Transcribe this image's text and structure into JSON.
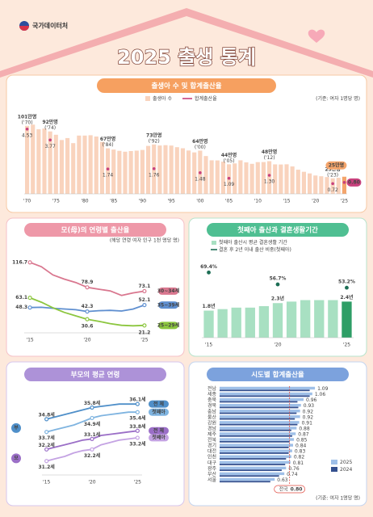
{
  "header": {
    "org": "국가데이터처",
    "title": "2025 출생 통계"
  },
  "chart_data": [
    {
      "type": "combo",
      "title": "출생아 수 및 합계출산율",
      "note": "(기준: 여자 1명당 명)",
      "categories": [
        "'70",
        null,
        null,
        null,
        null,
        "'75",
        null,
        null,
        null,
        null,
        "'80",
        null,
        null,
        null,
        null,
        "'85",
        null,
        null,
        null,
        null,
        "'90",
        null,
        null,
        null,
        null,
        "'95",
        null,
        null,
        null,
        null,
        "'00",
        null,
        null,
        null,
        null,
        "'05",
        null,
        null,
        null,
        null,
        "'10",
        null,
        null,
        null,
        null,
        "'15",
        null,
        null,
        null,
        null,
        "'20",
        null,
        null,
        null,
        null,
        "'25"
      ],
      "series": [
        {
          "name": "출생아 수",
          "color": "#f9d3bd",
          "highlight": "#f4a56c",
          "values": [
            100.7,
            102.5,
            95.6,
            96.7,
            92.4,
            87.5,
            79.7,
            82.6,
            75.1,
            86.3,
            86.3,
            86.8,
            84.9,
            77.0,
            67.4,
            65.6,
            63.7,
            62.4,
            63.4,
            64.0,
            65.0,
            71.0,
            73.1,
            71.6,
            72.1,
            71.5,
            69.1,
            67.5,
            64.2,
            61.4,
            64.0,
            56.0,
            49.7,
            49.5,
            47.7,
            43.8,
            45.1,
            49.7,
            46.6,
            44.5,
            47.0,
            47.1,
            48.4,
            43.7,
            43.5,
            43.8,
            40.6,
            35.8,
            32.7,
            30.3,
            27.2,
            26.1,
            24.9,
            23.0,
            23.8,
            25.4
          ],
          "value_labels": [
            "101만명",
            null,
            null,
            null,
            "92만명",
            null,
            null,
            null,
            null,
            null,
            null,
            null,
            null,
            null,
            "67만명",
            null,
            null,
            null,
            null,
            null,
            null,
            null,
            "73만명",
            null,
            null,
            null,
            null,
            null,
            null,
            null,
            "64만명",
            null,
            null,
            null,
            null,
            "44만명",
            null,
            null,
            null,
            null,
            null,
            null,
            "48만명",
            null,
            null,
            null,
            null,
            null,
            null,
            null,
            null,
            null,
            null,
            "23만명",
            null,
            "25만명"
          ],
          "value_notes": [
            "('70)",
            null,
            null,
            null,
            "('74)",
            null,
            null,
            null,
            null,
            null,
            null,
            null,
            null,
            null,
            "('84)",
            null,
            null,
            null,
            null,
            null,
            null,
            null,
            "('92)",
            null,
            null,
            null,
            null,
            null,
            null,
            null,
            "('00)",
            null,
            null,
            null,
            null,
            "('05)",
            null,
            null,
            null,
            null,
            null,
            null,
            "('12)",
            null,
            null,
            null,
            null,
            null,
            null,
            null,
            null,
            null,
            null,
            "('23)",
            null,
            null
          ]
        },
        {
          "name": "합계출산율",
          "color": "#c8417d",
          "axis": "y2",
          "values": [
            4.53,
            4.54,
            4.12,
            4.07,
            3.77,
            3.43,
            3.0,
            2.99,
            2.64,
            2.9,
            2.82,
            2.57,
            2.39,
            2.06,
            1.74,
            1.66,
            1.58,
            1.53,
            1.55,
            1.56,
            1.57,
            1.71,
            1.76,
            1.65,
            1.66,
            1.63,
            1.57,
            1.54,
            1.46,
            1.43,
            1.48,
            1.31,
            1.18,
            1.19,
            1.16,
            1.09,
            1.13,
            1.26,
            1.19,
            1.15,
            1.23,
            1.24,
            1.3,
            1.19,
            1.21,
            1.24,
            1.17,
            1.05,
            0.98,
            0.92,
            0.84,
            0.81,
            0.78,
            0.72,
            0.75,
            0.8
          ],
          "value_labels": [
            "4.53",
            null,
            null,
            null,
            "3.77",
            null,
            null,
            null,
            null,
            null,
            null,
            null,
            null,
            null,
            "1.74",
            null,
            null,
            null,
            null,
            null,
            null,
            null,
            "1.76",
            null,
            null,
            null,
            null,
            null,
            null,
            null,
            "1.48",
            null,
            null,
            null,
            null,
            "1.09",
            null,
            null,
            null,
            null,
            null,
            null,
            "1.30",
            null,
            null,
            null,
            null,
            null,
            null,
            null,
            null,
            null,
            null,
            "0.72",
            null,
            "0.80"
          ]
        }
      ],
      "ylim": [
        0,
        110
      ],
      "y2lim": [
        0,
        5.2
      ]
    },
    {
      "type": "line",
      "title": "모(母)의 연령별 출산율",
      "note": "(해당 연령 여자 인구 1천 명당 명)",
      "categories": [
        "'15",
        null,
        null,
        null,
        null,
        "'20",
        null,
        null,
        null,
        null,
        "'25"
      ],
      "series": [
        {
          "name": "30~34세",
          "color": "#d9778f",
          "values": [
            116.7,
            110.1,
            97.7,
            91.4,
            86.2,
            78.9,
            76.1,
            73.5,
            66.7,
            70.4,
            73.1
          ]
        },
        {
          "name": "35~39세",
          "color": "#5f8fd0",
          "values": [
            48.3,
            48.7,
            47.2,
            46.1,
            45.0,
            42.3,
            43.5,
            44.0,
            43.0,
            46.0,
            52.1
          ]
        },
        {
          "name": "25~29세",
          "color": "#8cc63f",
          "values": [
            63.1,
            56.4,
            47.9,
            41.0,
            35.7,
            30.6,
            27.5,
            24.0,
            21.4,
            20.7,
            21.2
          ]
        }
      ],
      "ylim": [
        10,
        125
      ]
    },
    {
      "type": "combo",
      "title": "첫째아 출산과 결혼생활기간",
      "categories": [
        "'15",
        null,
        null,
        null,
        null,
        "'20",
        null,
        null,
        null,
        null,
        "'25"
      ],
      "series": [
        {
          "name": "첫째아 출산시 평균 결혼생활 기간",
          "color": "#a8e0c2",
          "highlight": "#2e9e66",
          "values": [
            1.8,
            1.9,
            2.0,
            2.0,
            2.1,
            2.3,
            2.4,
            2.5,
            2.5,
            2.5,
            2.4
          ],
          "value_labels": [
            "1.8년",
            null,
            null,
            null,
            null,
            "2.3년",
            null,
            null,
            null,
            null,
            "2.4년"
          ]
        },
        {
          "name": "결혼 후 2년 이내 출산 비중(첫째아)",
          "color": "#1d6e55",
          "axis": "y2",
          "values": [
            69.4,
            67.3,
            65.7,
            63.7,
            60.7,
            56.7,
            53.8,
            51.7,
            51.7,
            51.9,
            53.2
          ],
          "value_labels": [
            "69.4%",
            null,
            null,
            null,
            null,
            "56.7%",
            null,
            null,
            null,
            null,
            "53.2%"
          ]
        }
      ],
      "ylim": [
        0,
        5
      ],
      "y2lim": [
        0,
        80
      ]
    },
    {
      "type": "line",
      "title": "부모의 평균 연령",
      "categories": [
        "'15",
        null,
        null,
        null,
        null,
        "'20",
        null,
        null,
        null,
        null,
        "'25"
      ],
      "series": [
        {
          "name": "전 체",
          "group": "부",
          "color": "#4f8fc9",
          "values": [
            34.8,
            35.0,
            35.2,
            35.4,
            35.6,
            35.8,
            35.9,
            36.0,
            36.1,
            36.1,
            36.1
          ],
          "value_labels": [
            "34.8세",
            null,
            null,
            null,
            null,
            "35.8세",
            null,
            null,
            null,
            null,
            "36.1세"
          ]
        },
        {
          "name": "첫째아",
          "group": "부",
          "color": "#7fb4e0",
          "values": [
            33.7,
            33.9,
            34.1,
            34.3,
            34.6,
            34.9,
            35.1,
            35.2,
            35.3,
            35.4,
            35.4
          ],
          "value_labels": [
            "33.7세",
            null,
            null,
            null,
            null,
            "34.9세",
            null,
            null,
            null,
            null,
            "35.4세"
          ]
        },
        {
          "name": "전 체",
          "group": "모",
          "color": "#9b6fc7",
          "values": [
            32.2,
            32.4,
            32.6,
            32.8,
            33.0,
            33.1,
            33.4,
            33.5,
            33.6,
            33.7,
            33.8
          ],
          "value_labels": [
            "32.2세",
            null,
            null,
            null,
            null,
            "33.1세",
            null,
            null,
            null,
            null,
            "33.8세"
          ]
        },
        {
          "name": "첫째아",
          "group": "모",
          "color": "#c4a3e3",
          "values": [
            31.2,
            31.4,
            31.6,
            31.9,
            32.1,
            32.2,
            32.6,
            32.8,
            33.0,
            33.1,
            33.2
          ],
          "value_labels": [
            "31.2세",
            null,
            null,
            null,
            null,
            "32.2세",
            null,
            null,
            null,
            null,
            "33.2세"
          ]
        }
      ],
      "ylim": [
        30,
        37.5
      ]
    },
    {
      "type": "hbar",
      "title": "시도별 합계출산율",
      "note": "(기준: 여자 1명당 명)",
      "categories": [
        "전남",
        "세종",
        "충북",
        "경북",
        "충남",
        "울산",
        "강원",
        "경남",
        "제주",
        "전북",
        "경기",
        "대전",
        "인천",
        "대구",
        "광주",
        "부산",
        "서울"
      ],
      "series": [
        {
          "name": "2025",
          "color": "#9fc0e8",
          "values": [
            1.09,
            1.06,
            0.96,
            0.93,
            0.92,
            0.92,
            0.91,
            0.88,
            0.87,
            0.85,
            0.84,
            0.83,
            0.82,
            0.81,
            0.76,
            0.74,
            0.63
          ]
        },
        {
          "name": "2024",
          "color": "#34508f",
          "values": [
            1.03,
            1.03,
            0.89,
            0.9,
            0.88,
            0.86,
            0.89,
            0.82,
            0.83,
            0.8,
            0.79,
            0.79,
            0.76,
            0.75,
            0.71,
            0.68,
            0.58
          ]
        }
      ],
      "reference": {
        "label": "전국",
        "value": 0.8,
        "value_label": "0.80",
        "color": "#e0493f"
      },
      "xlim": [
        0,
        1.2
      ]
    }
  ]
}
